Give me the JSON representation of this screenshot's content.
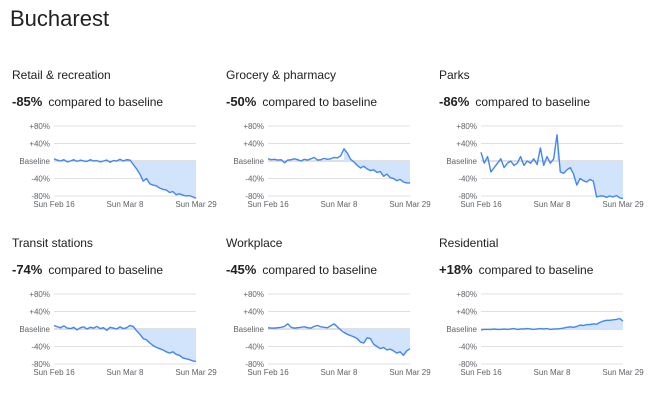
{
  "page": {
    "title": "Bucharest",
    "compare_text": "compared to baseline"
  },
  "colors": {
    "line": "#4285f4",
    "fill": "#d2e3fc",
    "grid": "#e0e0e0",
    "baseline": "#bdc1c6",
    "text": "#202124",
    "tick": "#5f6368"
  },
  "chart_data": [
    {
      "type": "line",
      "title": "Retail & recreation",
      "change": "-85%",
      "x_ticks": [
        "Sun Feb 16",
        "Sun Mar 8",
        "Sun Mar 29"
      ],
      "y_ticks": [
        "+80%",
        "+40%",
        "Baseline",
        "-40%",
        "-80%"
      ],
      "ylim": [
        -80,
        80
      ],
      "xlabel": "",
      "ylabel": "",
      "x_range": [
        "2020-02-15",
        "2020-03-29"
      ],
      "values": [
        5,
        2,
        0,
        3,
        -2,
        0,
        3,
        -1,
        2,
        0,
        -1,
        3,
        0,
        1,
        -2,
        0,
        2,
        -3,
        1,
        0,
        4,
        0,
        3,
        2,
        -8,
        -18,
        -30,
        -46,
        -40,
        -52,
        -55,
        -57,
        -62,
        -65,
        -66,
        -72,
        -70,
        -77,
        -75,
        -78,
        -80,
        -79,
        -82,
        -85
      ]
    },
    {
      "type": "line",
      "title": "Grocery & pharmacy",
      "change": "-50%",
      "x_ticks": [
        "Sun Feb 16",
        "Sun Mar 8",
        "Sun Mar 29"
      ],
      "y_ticks": [
        "+80%",
        "+40%",
        "Baseline",
        "-40%",
        "-80%"
      ],
      "ylim": [
        -80,
        80
      ],
      "xlabel": "",
      "ylabel": "",
      "x_range": [
        "2020-02-15",
        "2020-03-29"
      ],
      "values": [
        5,
        3,
        4,
        2,
        3,
        -4,
        2,
        3,
        5,
        3,
        0,
        4,
        2,
        5,
        8,
        2,
        3,
        6,
        4,
        5,
        8,
        7,
        12,
        28,
        18,
        4,
        -2,
        -10,
        -16,
        -12,
        -18,
        -22,
        -20,
        -26,
        -24,
        -35,
        -30,
        -38,
        -40,
        -45,
        -42,
        -48,
        -50,
        -50
      ]
    },
    {
      "type": "line",
      "title": "Parks",
      "change": "-86%",
      "x_ticks": [
        "Sun Feb 16",
        "Sun Mar 8",
        "Sun Mar 29"
      ],
      "y_ticks": [
        "+80%",
        "+40%",
        "Baseline",
        "-40%",
        "-80%"
      ],
      "ylim": [
        -80,
        80
      ],
      "xlabel": "",
      "ylabel": "",
      "x_range": [
        "2020-02-15",
        "2020-03-29"
      ],
      "values": [
        20,
        -5,
        10,
        -25,
        -15,
        -5,
        5,
        -15,
        -5,
        0,
        -10,
        -5,
        10,
        -10,
        0,
        -5,
        5,
        -8,
        30,
        -10,
        10,
        -5,
        5,
        60,
        -25,
        -28,
        -20,
        -15,
        -30,
        -55,
        -40,
        -45,
        -48,
        -42,
        -46,
        -82,
        -80,
        -80,
        -83,
        -80,
        -82,
        -79,
        -84,
        -86
      ]
    },
    {
      "type": "line",
      "title": "Transit stations",
      "change": "-74%",
      "x_ticks": [
        "Sun Feb 16",
        "Sun Mar 8",
        "Sun Mar 29"
      ],
      "y_ticks": [
        "+80%",
        "+40%",
        "Baseline",
        "-40%",
        "-80%"
      ],
      "ylim": [
        -80,
        80
      ],
      "xlabel": "",
      "ylabel": "",
      "x_range": [
        "2020-02-15",
        "2020-03-29"
      ],
      "values": [
        8,
        5,
        3,
        7,
        2,
        1,
        4,
        -2,
        3,
        5,
        0,
        4,
        2,
        6,
        1,
        3,
        -3,
        4,
        2,
        0,
        5,
        1,
        3,
        8,
        6,
        -4,
        -12,
        -22,
        -25,
        -32,
        -38,
        -42,
        -45,
        -48,
        -52,
        -55,
        -52,
        -58,
        -60,
        -66,
        -68,
        -70,
        -73,
        -74
      ]
    },
    {
      "type": "line",
      "title": "Workplace",
      "change": "-45%",
      "x_ticks": [
        "Sun Feb 16",
        "Sun Mar 8",
        "Sun Mar 29"
      ],
      "y_ticks": [
        "+80%",
        "+40%",
        "Baseline",
        "-40%",
        "-80%"
      ],
      "ylim": [
        -80,
        80
      ],
      "xlabel": "",
      "ylabel": "",
      "x_range": [
        "2020-02-15",
        "2020-03-29"
      ],
      "values": [
        3,
        2,
        2,
        3,
        4,
        6,
        12,
        4,
        2,
        3,
        4,
        5,
        3,
        2,
        6,
        8,
        5,
        4,
        3,
        7,
        12,
        5,
        -2,
        -8,
        -12,
        -15,
        -18,
        -22,
        -30,
        -32,
        -20,
        -22,
        -35,
        -40,
        -45,
        -42,
        -48,
        -46,
        -50,
        -55,
        -52,
        -60,
        -50,
        -45
      ]
    },
    {
      "type": "line",
      "title": "Residential",
      "change": "+18%",
      "x_ticks": [
        "Sun Feb 16",
        "Sun Mar 8",
        "Sun Mar 29"
      ],
      "y_ticks": [
        "+80%",
        "+40%",
        "Baseline",
        "-40%",
        "-80%"
      ],
      "ylim": [
        -80,
        80
      ],
      "xlabel": "",
      "ylabel": "",
      "x_range": [
        "2020-02-15",
        "2020-03-29"
      ],
      "values": [
        -2,
        -1,
        -1,
        -1,
        0,
        -1,
        -1,
        0,
        -1,
        0,
        1,
        -1,
        0,
        0,
        1,
        0,
        -1,
        0,
        1,
        0,
        1,
        -1,
        0,
        0,
        1,
        2,
        4,
        5,
        4,
        6,
        9,
        8,
        10,
        10,
        12,
        11,
        15,
        18,
        20,
        20,
        21,
        22,
        24,
        18
      ]
    }
  ]
}
